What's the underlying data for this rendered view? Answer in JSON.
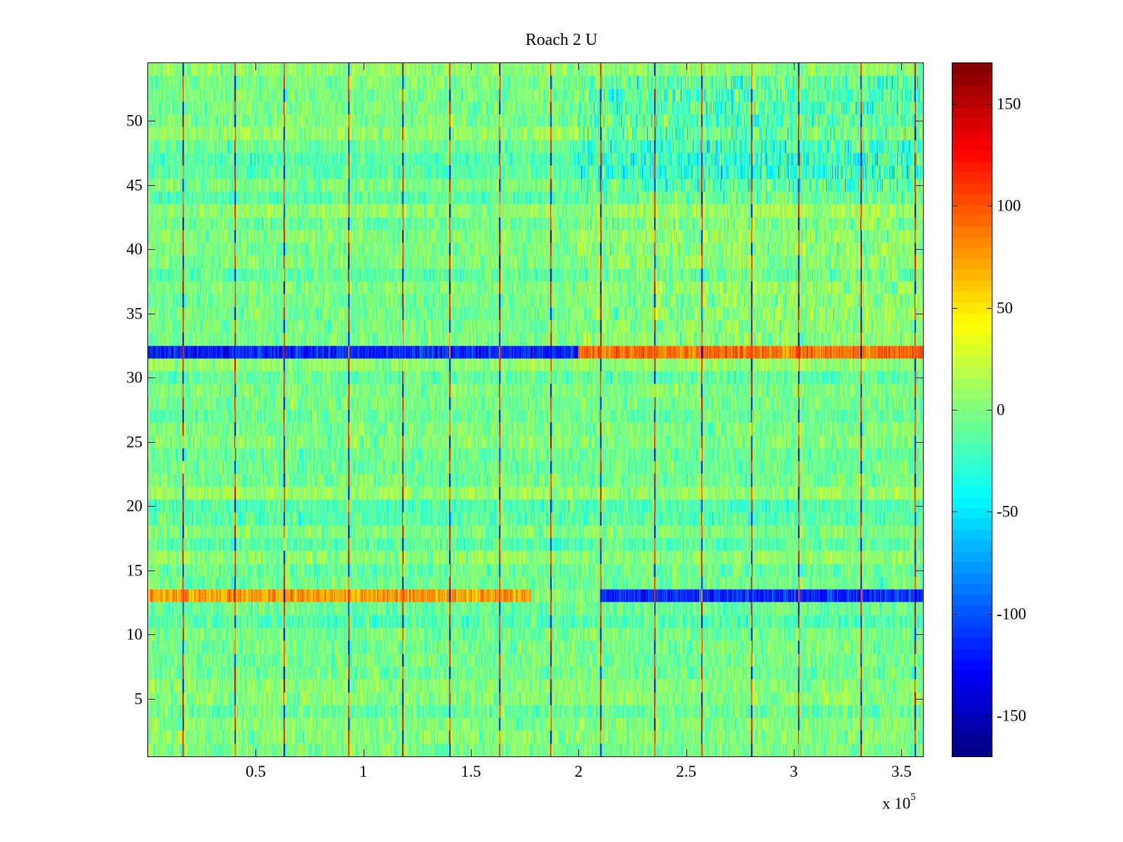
{
  "chart_data": {
    "type": "heatmap",
    "title": "Roach 2 U",
    "xlabel": "",
    "ylabel": "",
    "x_range": [
      0,
      360000
    ],
    "y_range": [
      0.5,
      54.5
    ],
    "x_ticks": [
      50000,
      100000,
      150000,
      200000,
      250000,
      300000,
      350000
    ],
    "x_tick_labels": [
      "0.5",
      "1",
      "1.5",
      "2",
      "2.5",
      "3",
      "3.5"
    ],
    "x_multiplier_base": "x 10",
    "x_multiplier_exponent": "5",
    "y_ticks": [
      5,
      10,
      15,
      20,
      25,
      30,
      35,
      40,
      45,
      50
    ],
    "y_tick_labels": [
      "5",
      "10",
      "15",
      "20",
      "25",
      "30",
      "35",
      "40",
      "45",
      "50"
    ],
    "colormap": "jet",
    "clim": [
      -170,
      170
    ],
    "colorbar_ticks": [
      150,
      100,
      50,
      0,
      -50,
      -100,
      -150
    ],
    "colorbar_tick_labels": [
      "150",
      "100",
      "50",
      "0",
      "-50",
      "-100",
      "-150"
    ],
    "rows": 54,
    "background_mean": -5,
    "strong_features": [
      {
        "row": 32,
        "x_from": 0,
        "x_to": 200000,
        "approx_value": -120
      },
      {
        "row": 32,
        "x_from": 200000,
        "x_to": 360000,
        "approx_value": 90
      },
      {
        "row": 13,
        "x_from": 0,
        "x_to": 178000,
        "approx_value": 75
      },
      {
        "row": 13,
        "x_from": 210000,
        "x_to": 360000,
        "approx_value": -115
      }
    ],
    "vertical_spike_x": [
      16000,
      40000,
      63000,
      93000,
      118000,
      140000,
      163000,
      187000,
      210000,
      235000,
      257000,
      280000,
      302000,
      331000,
      356000
    ]
  }
}
